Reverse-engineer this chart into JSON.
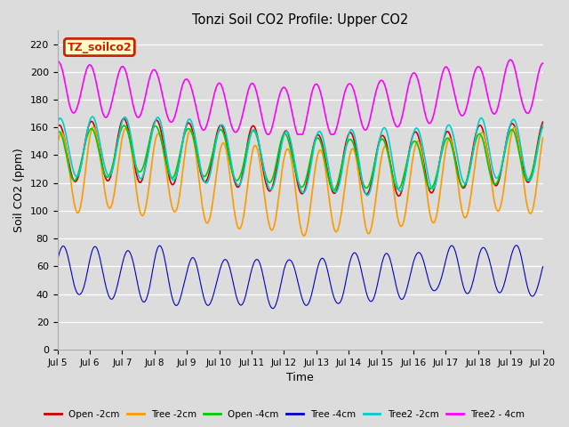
{
  "title": "Tonzi Soil CO2 Profile: Upper CO2",
  "ylabel": "Soil CO2 (ppm)",
  "xlabel": "Time",
  "ylim": [
    0,
    230
  ],
  "yticks": [
    0,
    20,
    40,
    60,
    80,
    100,
    120,
    140,
    160,
    180,
    200,
    220
  ],
  "n_days": 15,
  "bg_color": "#dcdcdc",
  "annotation_text": "TZ_soilco2",
  "annotation_bg": "#ffffcc",
  "annotation_edge": "#cc2200",
  "annotation_color": "#cc2200",
  "series": [
    {
      "label": "Open -2cm",
      "color": "#cc0000",
      "lw": 1.2
    },
    {
      "label": "Tree -2cm",
      "color": "#ff9900",
      "lw": 1.2
    },
    {
      "label": "Open -4cm",
      "color": "#00cc00",
      "lw": 1.2
    },
    {
      "label": "Tree -4cm",
      "color": "#0000cc",
      "lw": 0.8
    },
    {
      "label": "Tree2 -2cm",
      "color": "#00cccc",
      "lw": 1.2
    },
    {
      "label": "Tree2 - 4cm",
      "color": "#ff00ff",
      "lw": 1.2
    }
  ],
  "xtick_labels": [
    "Jul 5",
    "Jul 6",
    "Jul 7",
    "Jul 8",
    "Jul 9",
    "Jul 10",
    "Jul 11",
    "Jul 12",
    "Jul 13",
    "Jul 14",
    "Jul 15",
    "Jul 16",
    "Jul 17",
    "Jul 18",
    "Jul 19",
    "Jul 20"
  ]
}
